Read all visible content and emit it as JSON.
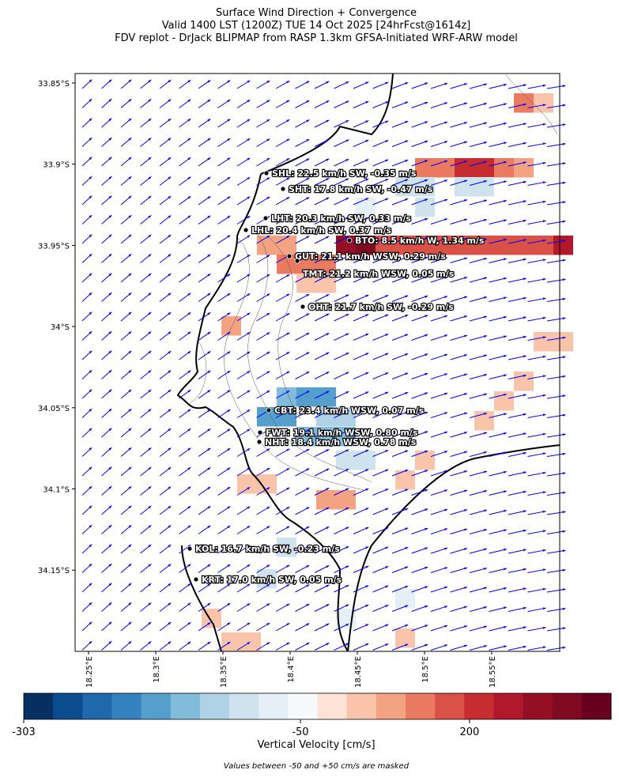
{
  "header": {
    "title_lines": [
      "Surface Wind Direction + Convergence",
      "Valid 1400 LST (1200Z) TUE 14 Oct 2025 [24hrFcst@1614z]",
      "FDV replot - DrJack BLIPMAP from RASP 1.3km GFSA-Initiated WRF-ARW model"
    ]
  },
  "map": {
    "lat_ticks": [
      {
        "value": -33.85,
        "label": "33.85°S"
      },
      {
        "value": -33.9,
        "label": "33.9°S"
      },
      {
        "value": -33.95,
        "label": "33.95°S"
      },
      {
        "value": -34.0,
        "label": "34°S"
      },
      {
        "value": -34.05,
        "label": "34.05°S"
      },
      {
        "value": -34.1,
        "label": "34.1°S"
      },
      {
        "value": -34.15,
        "label": "34.15°S"
      }
    ],
    "lon_ticks": [
      {
        "value": 18.25,
        "label": "18.25°E"
      },
      {
        "value": 18.3,
        "label": "18.3°E"
      },
      {
        "value": 18.35,
        "label": "18.35°E"
      },
      {
        "value": 18.4,
        "label": "18.4°E"
      },
      {
        "value": 18.45,
        "label": "18.45°E"
      },
      {
        "value": 18.5,
        "label": "18.5°E"
      },
      {
        "value": 18.55,
        "label": "18.55°E"
      }
    ],
    "stations": [
      "SHL: 22.5 km/h SW, -0.35 m/s",
      "SHT: 17.8 km/h SW, -0.47 m/s",
      "LHT: 20.3 km/h SW, 0.33 m/s",
      "LHL: 20.4 km/h SW, 0.37 m/s",
      "BTO: 8.5 km/h W, 1.34 m/s",
      "GUT: 21.1 km/h WSW, 0.29 m/s",
      "TMT: 21.2 km/h WSW, 0.05 m/s",
      "OHT: 21.7 km/h SW, -0.29 m/s",
      "CBT: 23.4 km/h WSW, 0.07 m/s",
      "FWT: 19.1 km/h WSW, 0.80 m/s",
      "NHT: 18.4 km/h WSW, 0.78 m/s",
      "KOL: 16.7 km/h SW, -0.23 m/s",
      "KRT: 17.0 km/h SW, 0.05 m/s"
    ]
  },
  "colorbar": {
    "ticks": [
      -303,
      -50,
      200
    ],
    "label": "Vertical Velocity [cm/s]",
    "colors": [
      "#053061",
      "#0b4c8f",
      "#1f68ac",
      "#3582c0",
      "#559fcd",
      "#82bcdb",
      "#b0d2e6",
      "#cfe3ef",
      "#e5eff7",
      "#f7fafd",
      "#fde2d5",
      "#f9c4aa",
      "#f4a382",
      "#ea7b60",
      "#da5147",
      "#c72d30",
      "#b2182b",
      "#940f24",
      "#800a21",
      "#67001f"
    ]
  },
  "footnote": "Values between -50 and +50 cm/s are masked"
}
